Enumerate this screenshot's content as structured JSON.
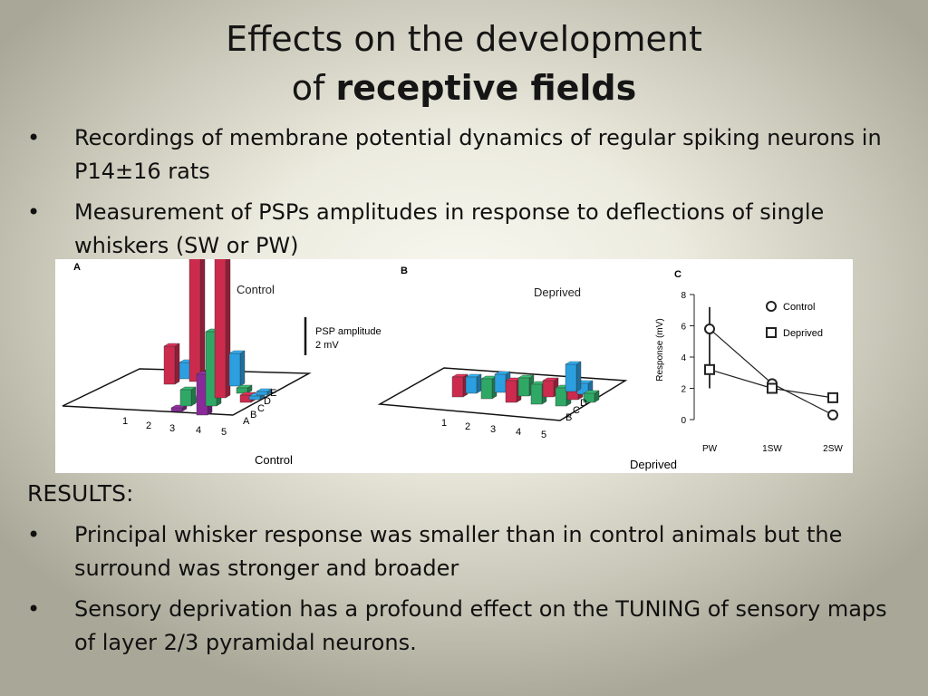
{
  "slide": {
    "title_line1": "Effects on the development",
    "title_line2_prefix": "of ",
    "title_line2_bold": "receptive fields",
    "bullet_symbol": "•",
    "bullets_top": [
      "Recordings of membrane potential dynamics of regular spiking neurons in P14±16 rats",
      "Measurement of PSPs amplitudes in response to deflections of single whiskers (SW or PW)"
    ],
    "results_heading": "RESULTS:",
    "bullets_bottom": [
      "Principal whisker response was smaller than in control animals but the surround was stronger and broader",
      "Sensory deprivation has a profound effect on the TUNING of sensory maps of layer 2/3 pyramidal neurons."
    ]
  },
  "figure": {
    "panel_a": {
      "label": "A",
      "condition": "Control",
      "caption": "Control",
      "scale_label_1": "PSP amplitude",
      "scale_label_2": "2 mV",
      "row_labels": [
        "1",
        "2",
        "3",
        "4",
        "5"
      ],
      "col_labels": [
        "A",
        "B",
        "C",
        "D",
        "E"
      ]
    },
    "panel_b": {
      "label": "B",
      "condition": "Deprived",
      "caption": "Deprived",
      "row_labels": [
        "1",
        "2",
        "3",
        "4",
        "5"
      ],
      "col_labels": [
        "B",
        "C",
        "D"
      ]
    },
    "colors": {
      "red": "#cc2b4e",
      "green": "#2fa866",
      "blue": "#2b9fe0",
      "purple": "#8a2a9a"
    }
  },
  "chart_data": {
    "type": "line",
    "panel_label": "C",
    "categories": [
      "PW",
      "1SW",
      "2SW"
    ],
    "ylabel": "Response (mV)",
    "ylim": [
      0,
      8
    ],
    "yticks": [
      0,
      2,
      4,
      6,
      8
    ],
    "legend_position": "top-right",
    "series": [
      {
        "name": "Control",
        "marker": "circle",
        "values": [
          5.8,
          2.3,
          0.3
        ]
      },
      {
        "name": "Deprived",
        "marker": "square",
        "values": [
          3.2,
          2.0,
          1.4
        ]
      }
    ]
  }
}
